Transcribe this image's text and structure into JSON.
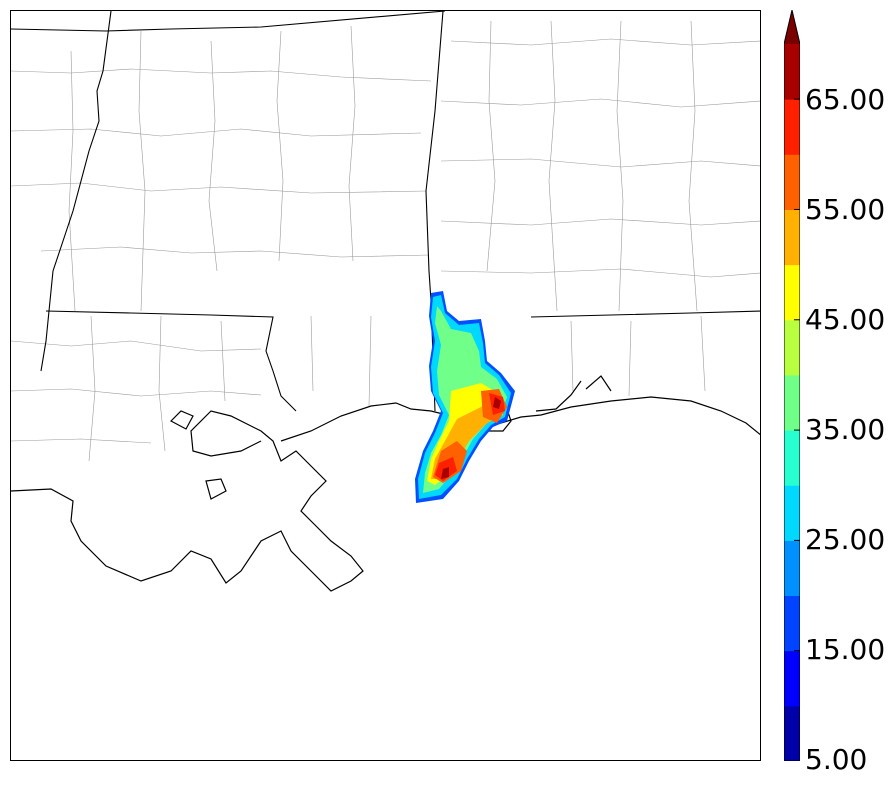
{
  "colorbar": {
    "ticks": [
      "5.00",
      "15.00",
      "25.00",
      "35.00",
      "45.00",
      "55.00",
      "65.00"
    ],
    "levels": [
      5,
      10,
      15,
      20,
      25,
      30,
      35,
      40,
      45,
      50,
      55,
      60,
      65,
      70
    ],
    "colors": [
      "#0000a8",
      "#0000ff",
      "#0044ff",
      "#0090ff",
      "#00d8ff",
      "#28ffd0",
      "#70ff88",
      "#b8ff40",
      "#ffff00",
      "#ffb000",
      "#ff6000",
      "#ff2000",
      "#a80000"
    ],
    "extend_color": "#7a0000"
  },
  "map": {
    "field_colors": [
      "#0050ff",
      "#00d8ff",
      "#70ff88",
      "#ffff00",
      "#ffb000",
      "#ff6000",
      "#ff2000",
      "#a80000"
    ]
  }
}
